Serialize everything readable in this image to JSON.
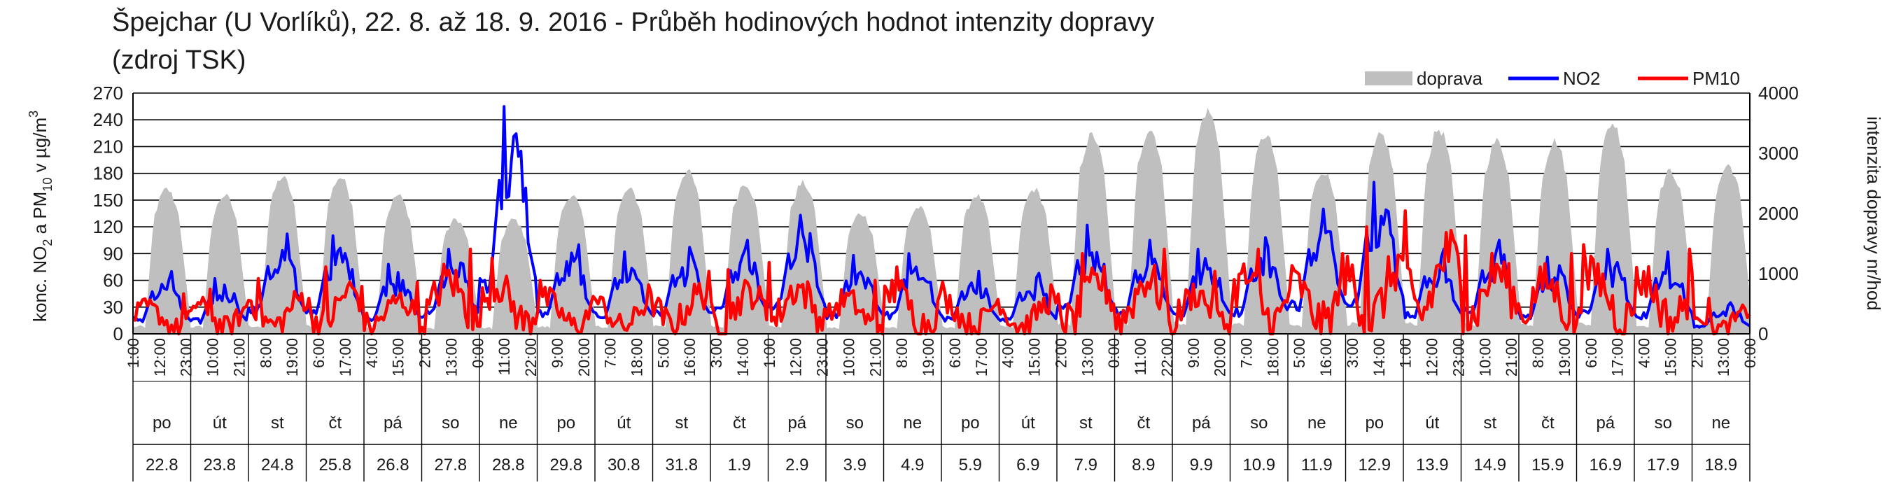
{
  "chart_data": {
    "type": "area",
    "title_line1": "Špejchar (U Vorlíků), 22. 8. až 18. 9. 2016 - Průběh hodinových hodnot intenzity dopravy",
    "title_line2": "(zdroj TSK)",
    "ylabel_left": "konc. NO2 a PM10 v µg/m3",
    "ylabel_right": "intenzita dopravy nr/hod",
    "ylim_left": [
      0,
      270
    ],
    "ylim_right": [
      0,
      4000
    ],
    "yticks_left": [
      0,
      30,
      60,
      90,
      120,
      150,
      180,
      210,
      240,
      270
    ],
    "yticks_right": [
      0,
      1000,
      2000,
      3000,
      4000
    ],
    "grid": true,
    "legend_position": "top-right",
    "legend": [
      {
        "name": "doprava",
        "color": "#bfbfbf"
      },
      {
        "name": "NO2",
        "color": "#0000ff"
      },
      {
        "name": "PM10",
        "color": "#ff0000"
      }
    ],
    "x_time_labels": [
      "1:00",
      "12:00",
      "23:00",
      "10:00",
      "21:00",
      "8:00",
      "19:00",
      "6:00",
      "17:00",
      "4:00",
      "15:00",
      "2:00",
      "13:00",
      "0:00",
      "11:00",
      "22:00",
      "9:00",
      "20:00",
      "7:00",
      "18:00",
      "5:00",
      "16:00",
      "3:00",
      "14:00",
      "1:00",
      "12:00",
      "23:00",
      "10:00",
      "21:00",
      "8:00",
      "19:00",
      "6:00",
      "17:00",
      "4:00",
      "15:00",
      "2:00",
      "13:00",
      "0:00",
      "11:00",
      "22:00",
      "9:00",
      "20:00",
      "7:00",
      "18:00",
      "5:00",
      "16:00",
      "3:00",
      "14:00",
      "1:00",
      "12:00",
      "23:00",
      "10:00",
      "21:00",
      "8:00",
      "19:00",
      "6:00",
      "17:00",
      "4:00",
      "15:00",
      "2:00",
      "13:00",
      "0:00"
    ],
    "days": [
      "po",
      "út",
      "st",
      "čt",
      "pá",
      "so",
      "ne",
      "po",
      "út",
      "st",
      "čt",
      "pá",
      "so",
      "ne",
      "po",
      "út",
      "st",
      "čt",
      "pá",
      "so",
      "ne",
      "po",
      "út",
      "st",
      "čt",
      "pá",
      "so",
      "ne"
    ],
    "dates": [
      "22.8",
      "23.8",
      "24.8",
      "25.8",
      "26.8",
      "27.8",
      "28.8",
      "29.8",
      "30.8",
      "31.8",
      "1.9",
      "2.9",
      "3.9",
      "4.9",
      "5.9",
      "6.9",
      "7.9",
      "8.9",
      "9.9",
      "10.9",
      "11.9",
      "12.9",
      "13.9",
      "14.9",
      "15.9",
      "16.9",
      "17.9",
      "18.9"
    ],
    "doprava_daily_peak": [
      2400,
      2300,
      2600,
      2600,
      2300,
      1900,
      1900,
      2300,
      2400,
      2700,
      2500,
      2500,
      2000,
      2100,
      2300,
      2400,
      3300,
      3400,
      3700,
      3300,
      2700,
      3300,
      3400,
      3200,
      3200,
      3500,
      2700,
      2800
    ],
    "no2_daily_peak": [
      70,
      62,
      112,
      110,
      78,
      95,
      255,
      100,
      92,
      97,
      105,
      133,
      88,
      90,
      70,
      68,
      122,
      105,
      95,
      108,
      140,
      170,
      95,
      105,
      86,
      95,
      92,
      35
    ],
    "pm10_daily_peak": [
      45,
      50,
      62,
      75,
      58,
      95,
      85,
      60,
      55,
      70,
      72,
      80,
      60,
      75,
      58,
      55,
      90,
      95,
      70,
      95,
      90,
      120,
      138,
      110,
      90,
      100,
      95,
      40
    ]
  }
}
